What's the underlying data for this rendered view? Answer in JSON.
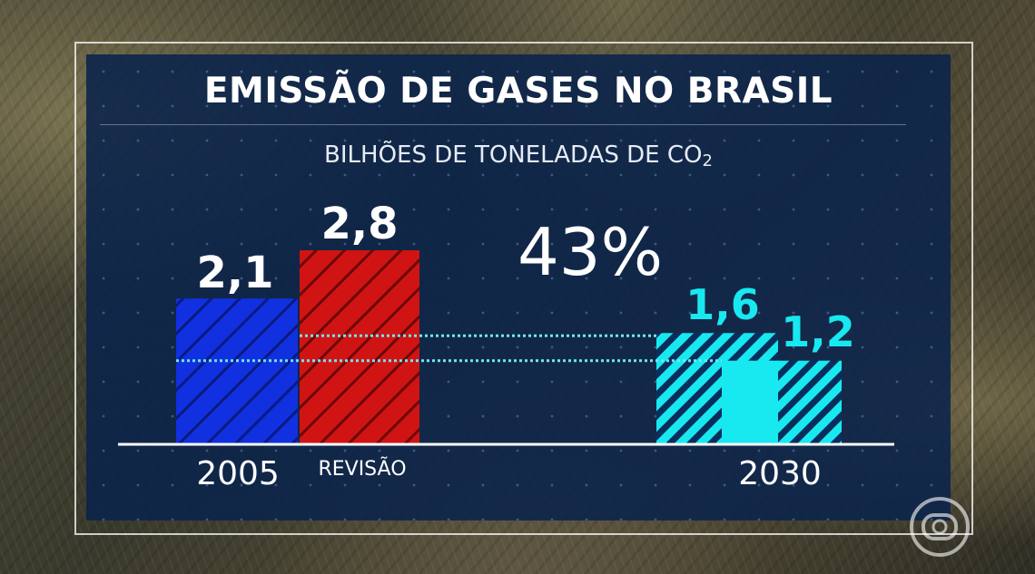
{
  "title": "EMISSÃO DE GASES NO BRASIL",
  "subtitle_main": "BILHÕES DE TONELADAS DE CO",
  "subtitle_sub": "2",
  "percent_label": "43%",
  "chart_data": {
    "type": "bar",
    "categories": [
      "2005",
      "REVISÃO",
      "2030",
      "2030"
    ],
    "values": [
      2.1,
      2.8,
      1.6,
      1.2
    ],
    "value_labels": [
      "2,1",
      "2,8",
      "1,6",
      "1,2"
    ],
    "x_tick_labels": [
      "2005",
      "REVISÃO",
      "2030"
    ],
    "ylim": [
      0,
      2.8
    ],
    "colors": {
      "blue": "#1130e0",
      "red": "#d01414",
      "cyan": "#18e8f0",
      "grid_line": "#6fe6f0"
    },
    "annotation": "43%"
  }
}
